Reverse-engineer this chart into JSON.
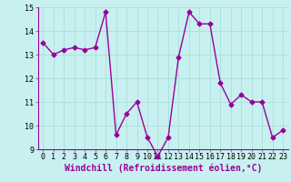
{
  "x": [
    0,
    1,
    2,
    3,
    4,
    5,
    6,
    7,
    8,
    9,
    10,
    11,
    12,
    13,
    14,
    15,
    16,
    17,
    18,
    19,
    20,
    21,
    22,
    23
  ],
  "y": [
    13.5,
    13.0,
    13.2,
    13.3,
    13.2,
    13.3,
    14.8,
    9.6,
    10.5,
    11.0,
    9.5,
    8.7,
    9.5,
    12.9,
    14.8,
    14.3,
    14.3,
    11.8,
    10.9,
    11.3,
    11.0,
    11.0,
    9.5,
    9.8
  ],
  "line_color": "#990099",
  "marker": "D",
  "marker_size": 2.5,
  "background_color": "#c8f0f0",
  "grid_color": "#aadddd",
  "xlabel": "Windchill (Refroidissement éolien,°C)",
  "xlabel_fontsize": 7,
  "xlabel_color": "#990099",
  "ylim": [
    9,
    15
  ],
  "xlim": [
    -0.5,
    23.5
  ],
  "yticks": [
    9,
    10,
    11,
    12,
    13,
    14,
    15
  ],
  "xtick_labels": [
    "0",
    "1",
    "2",
    "3",
    "4",
    "5",
    "6",
    "7",
    "8",
    "9",
    "10",
    "11",
    "12",
    "13",
    "14",
    "15",
    "16",
    "17",
    "18",
    "19",
    "20",
    "21",
    "22",
    "23"
  ],
  "tick_fontsize": 6,
  "line_width": 1.0
}
